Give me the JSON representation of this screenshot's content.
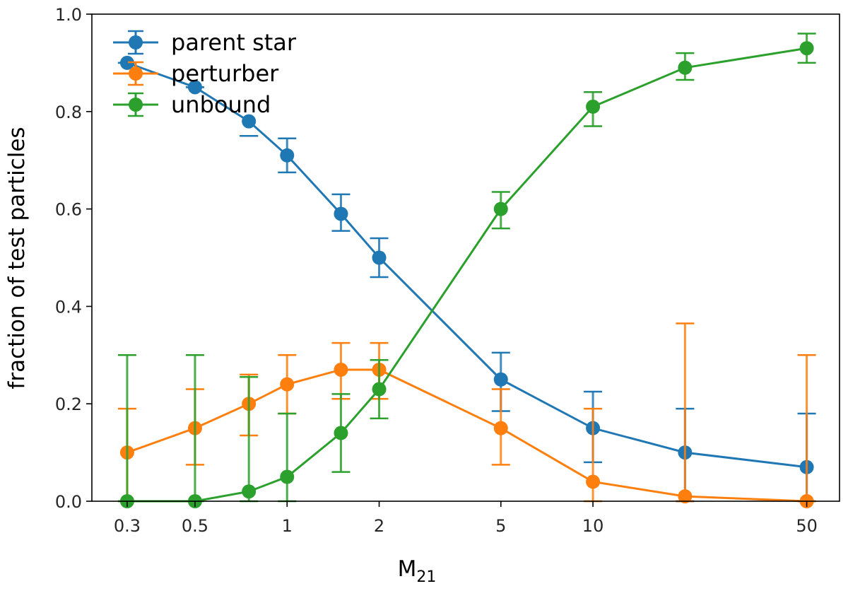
{
  "chart_data": {
    "type": "line",
    "x_scale": "log",
    "xlabel": "M",
    "xlabel_sub": "21",
    "ylabel": "fraction of test particles",
    "xlim": [
      0.23,
      64
    ],
    "ylim": [
      0.0,
      1.0
    ],
    "x_ticks": [
      0.3,
      0.5,
      1,
      2,
      5,
      10,
      50
    ],
    "x_tick_labels": [
      "0.3",
      "0.5",
      "1",
      "2",
      "5",
      "10",
      "50"
    ],
    "y_ticks": [
      0.0,
      0.2,
      0.4,
      0.6,
      0.8,
      1.0
    ],
    "y_tick_labels": [
      "0.0",
      "0.2",
      "0.4",
      "0.6",
      "0.8",
      "1.0"
    ],
    "grid": false,
    "legend_position": "top-left",
    "series": [
      {
        "name": "parent star",
        "color": "#1f77b4",
        "x": [
          0.3,
          0.5,
          0.75,
          1,
          1.5,
          2,
          5,
          10,
          20,
          50
        ],
        "y": [
          0.9,
          0.85,
          0.78,
          0.71,
          0.59,
          0.5,
          0.25,
          0.15,
          0.1,
          0.07
        ],
        "err_low": [
          0.9,
          0.85,
          0.75,
          0.675,
          0.555,
          0.46,
          0.185,
          0.08,
          0.0,
          0.0
        ],
        "err_high": [
          0.9,
          0.85,
          0.75,
          0.745,
          0.63,
          0.54,
          0.305,
          0.225,
          0.19,
          0.18
        ]
      },
      {
        "name": "perturber",
        "color": "#ff7f0e",
        "x": [
          0.3,
          0.5,
          0.75,
          1,
          1.5,
          2,
          5,
          10,
          20,
          50
        ],
        "y": [
          0.1,
          0.15,
          0.2,
          0.24,
          0.27,
          0.27,
          0.15,
          0.04,
          0.01,
          0.0
        ],
        "err_low": [
          0.0,
          0.075,
          0.135,
          0.18,
          0.21,
          0.21,
          0.075,
          0.0,
          0.0,
          0.0
        ],
        "err_high": [
          0.19,
          0.23,
          0.26,
          0.3,
          0.325,
          0.325,
          0.23,
          0.19,
          0.365,
          0.3
        ]
      },
      {
        "name": "unbound",
        "color": "#2ca02c",
        "x": [
          0.3,
          0.5,
          0.75,
          1,
          1.5,
          2,
          5,
          10,
          20,
          50
        ],
        "y": [
          0.0,
          0.0,
          0.02,
          0.05,
          0.14,
          0.23,
          0.6,
          0.81,
          0.89,
          0.93
        ],
        "err_low": [
          0.0,
          0.0,
          0.0,
          0.0,
          0.06,
          0.17,
          0.56,
          0.77,
          0.865,
          0.9
        ],
        "err_high": [
          0.3,
          0.3,
          0.255,
          0.18,
          0.22,
          0.29,
          0.635,
          0.84,
          0.92,
          0.96
        ]
      }
    ]
  }
}
